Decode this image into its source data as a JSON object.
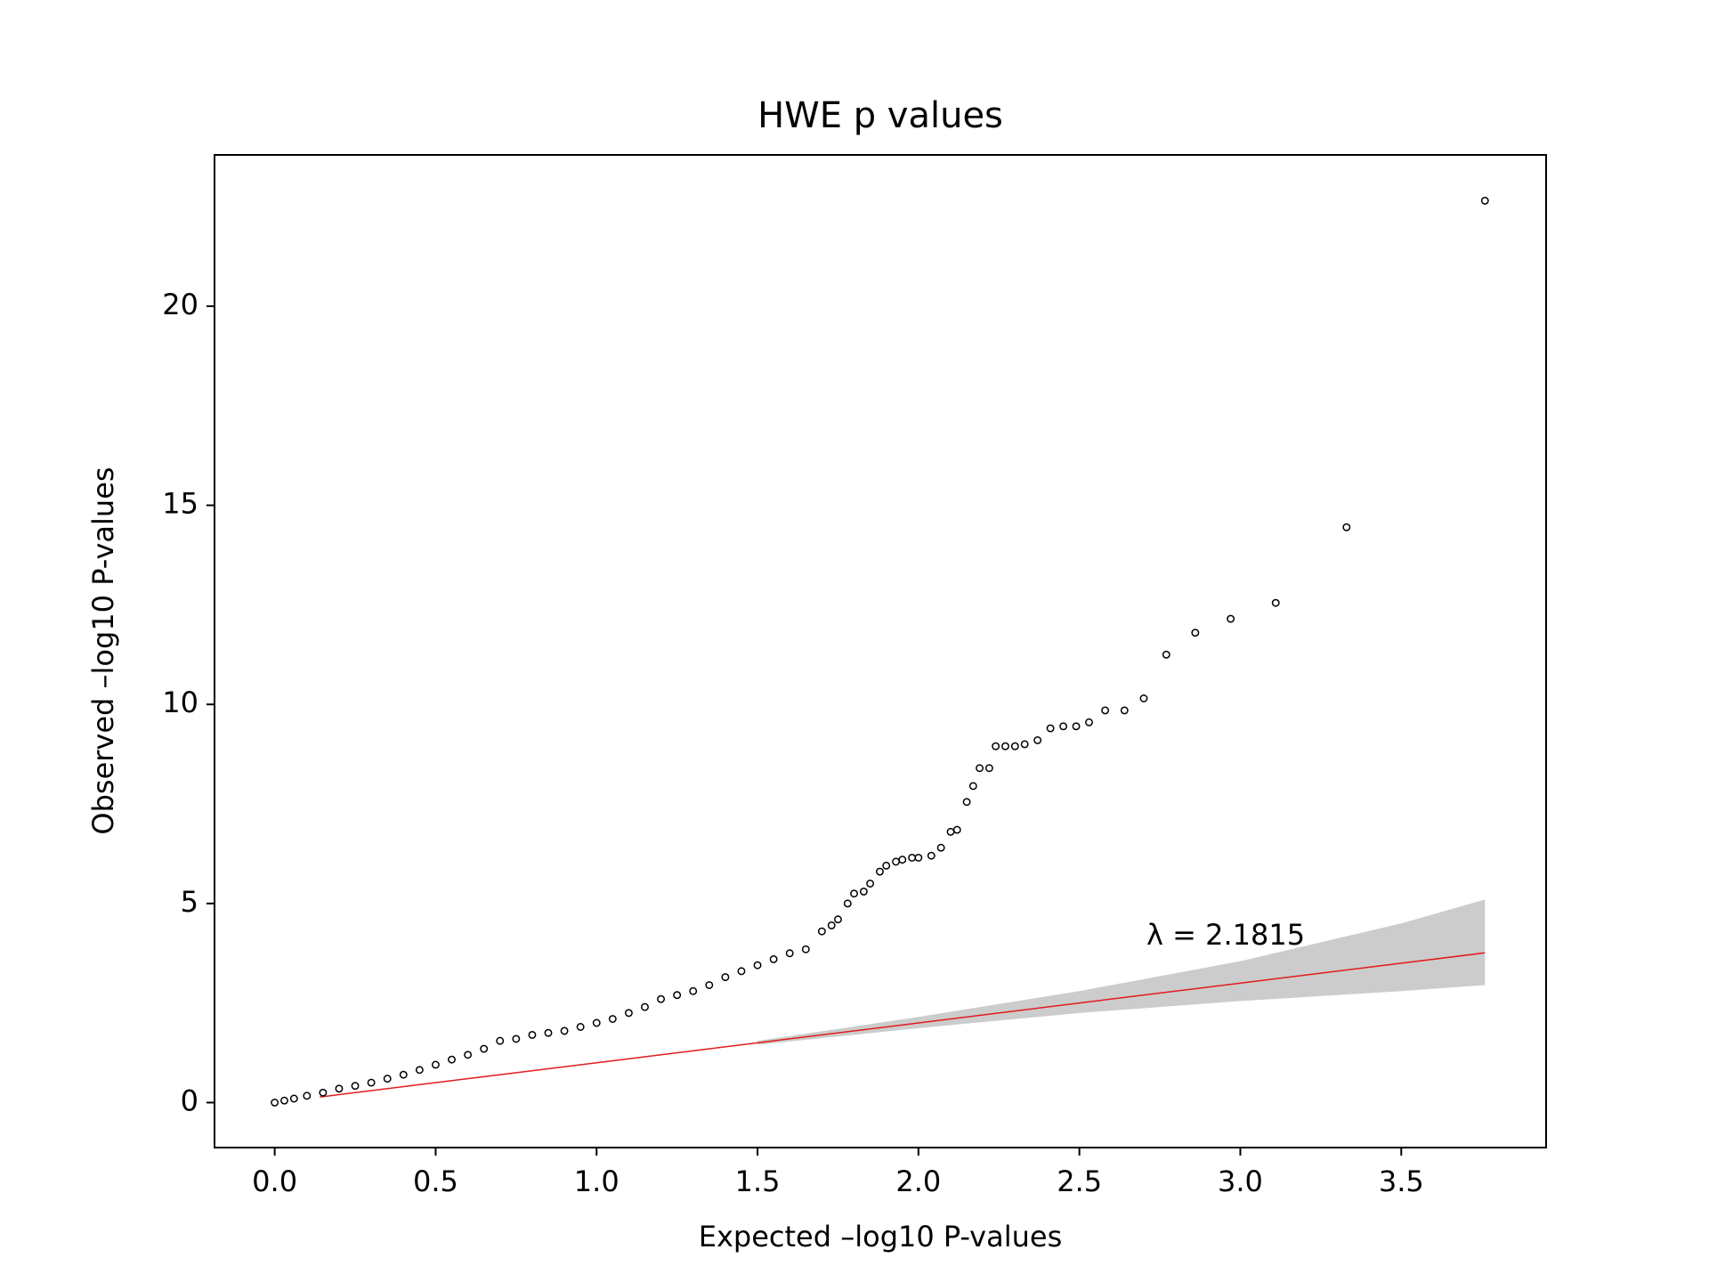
{
  "chart_data": {
    "type": "scatter",
    "title": "HWE p values",
    "x_label": "Expected –log10 P-values",
    "y_label": "Observed –log10 P-values",
    "annotation": "λ = 2.1815",
    "xlim": [
      -0.187,
      3.95
    ],
    "ylim": [
      -1.13,
      23.8
    ],
    "xticks": [
      {
        "value": 0,
        "label": "0.0"
      },
      0.5,
      {
        "value": 1,
        "label": "1.0"
      },
      1.5,
      {
        "value": 2,
        "label": "2.0"
      },
      2.5,
      {
        "value": 3,
        "label": "3.0"
      },
      3.5
    ],
    "yticks": [
      0,
      5,
      10,
      15,
      20
    ],
    "grid": false,
    "points": {
      "color": "#000000",
      "x": [
        0,
        0.03,
        0.06,
        0.1,
        0.15,
        0.2,
        0.25,
        0.3,
        0.35,
        0.4,
        0.45,
        0.5,
        0.55,
        0.6,
        0.65,
        0.7,
        0.75,
        0.8,
        0.85,
        0.9,
        0.95,
        1.0,
        1.05,
        1.1,
        1.15,
        1.2,
        1.25,
        1.3,
        1.35,
        1.4,
        1.45,
        1.5,
        1.55,
        1.6,
        1.65,
        1.7,
        1.73,
        1.75,
        1.78,
        1.8,
        1.83,
        1.85,
        1.88,
        1.9,
        1.93,
        1.95,
        1.98,
        2.0,
        2.04,
        2.07,
        2.1,
        2.12,
        2.15,
        2.17,
        2.19,
        2.22,
        2.24,
        2.27,
        2.3,
        2.33,
        2.37,
        2.41,
        2.45,
        2.49,
        2.53,
        2.58,
        2.64,
        2.7,
        2.77,
        2.86,
        2.97,
        3.11,
        3.33,
        3.76
      ],
      "y": [
        0,
        0.05,
        0.1,
        0.17,
        0.25,
        0.35,
        0.42,
        0.5,
        0.6,
        0.7,
        0.82,
        0.95,
        1.08,
        1.2,
        1.35,
        1.55,
        1.6,
        1.7,
        1.75,
        1.8,
        1.9,
        2.0,
        2.1,
        2.25,
        2.4,
        2.6,
        2.7,
        2.8,
        2.95,
        3.15,
        3.3,
        3.45,
        3.6,
        3.75,
        3.85,
        4.3,
        4.45,
        4.6,
        5.0,
        5.25,
        5.3,
        5.5,
        5.8,
        5.95,
        6.05,
        6.1,
        6.15,
        6.15,
        6.2,
        6.4,
        6.8,
        6.85,
        7.55,
        7.95,
        8.4,
        8.4,
        8.95,
        8.95,
        8.95,
        9.0,
        9.1,
        9.4,
        9.45,
        9.45,
        9.55,
        9.85,
        9.85,
        10.15,
        11.25,
        11.8,
        12.15,
        12.55,
        14.45,
        22.65
      ]
    },
    "expected_line": {
      "color": "#e31a1c",
      "x": [
        0.14,
        3.76
      ],
      "y": [
        0.14,
        3.76
      ]
    },
    "band": {
      "color": "#cccccc",
      "x": [
        1.5,
        2.0,
        2.5,
        3.0,
        3.5,
        3.76
      ],
      "upper": [
        1.55,
        2.15,
        2.8,
        3.55,
        4.5,
        5.1
      ],
      "lower": [
        1.45,
        1.87,
        2.25,
        2.55,
        2.8,
        2.95
      ]
    }
  }
}
